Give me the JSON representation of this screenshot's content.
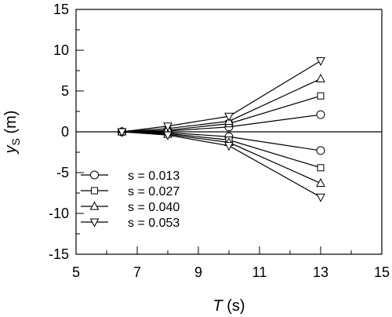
{
  "chart_data": {
    "type": "line",
    "title": "",
    "xlabel_var": "T",
    "xlabel_unit": " (s)",
    "ylabel_var": "y",
    "ylabel_sub": "S",
    "ylabel_unit": " (m)",
    "xlim": [
      5,
      15
    ],
    "ylim": [
      -15,
      15
    ],
    "x_major_ticks": [
      5,
      7,
      9,
      11,
      13,
      15
    ],
    "x_tick_labels": [
      "5",
      "7",
      "9",
      "11",
      "13",
      "15"
    ],
    "x_minor_step": 1,
    "y_major_ticks": [
      -15,
      -10,
      -5,
      0,
      5,
      10,
      15
    ],
    "y_tick_labels": [
      "-15",
      "-10",
      "-5",
      "0",
      "5",
      "10",
      "15"
    ],
    "y_minor_step": 2.5,
    "zero_line": true,
    "grid": false,
    "legend_position": "lower-left",
    "x": [
      6.5,
      8,
      10,
      13
    ],
    "series": [
      {
        "name": "s = 0.013",
        "marker": "circle",
        "upper": [
          0,
          0.1,
          0.6,
          2.1
        ],
        "lower": [
          0,
          -0.1,
          -0.6,
          -2.3
        ]
      },
      {
        "name": "s = 0.027",
        "marker": "square",
        "upper": [
          0,
          0.2,
          1.0,
          4.4
        ],
        "lower": [
          0,
          -0.2,
          -1.0,
          -4.4
        ]
      },
      {
        "name": "s = 0.040",
        "marker": "triangle-up",
        "upper": [
          0,
          0.4,
          1.3,
          6.5
        ],
        "lower": [
          0,
          -0.3,
          -1.3,
          -6.3
        ]
      },
      {
        "name": "s = 0.053",
        "marker": "triangle-down",
        "upper": [
          0,
          0.7,
          1.9,
          8.7
        ],
        "lower": [
          0,
          -0.4,
          -1.7,
          -8.0
        ]
      }
    ]
  }
}
